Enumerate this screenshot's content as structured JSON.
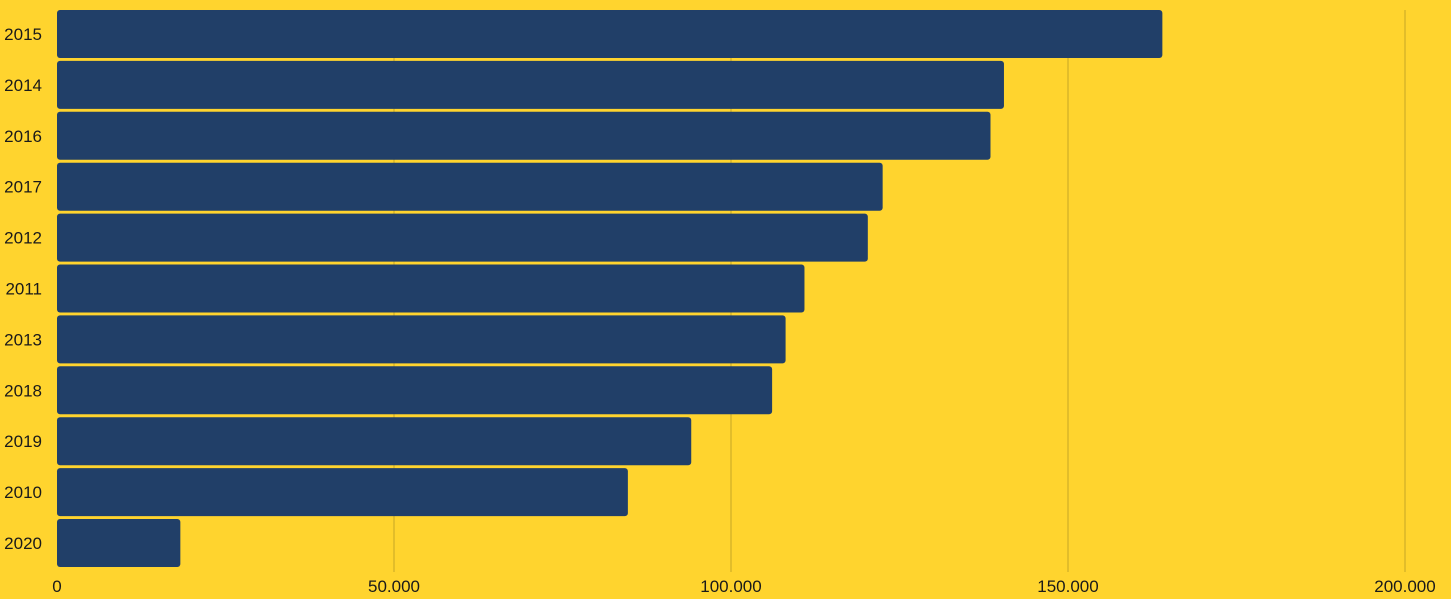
{
  "chart_data": {
    "type": "bar",
    "orientation": "horizontal",
    "categories": [
      "2015",
      "2014",
      "2016",
      "2017",
      "2012",
      "2011",
      "2013",
      "2018",
      "2019",
      "2010",
      "2020"
    ],
    "values": [
      164000,
      140500,
      138500,
      122500,
      120300,
      110900,
      108100,
      106100,
      94100,
      84700,
      18300
    ],
    "xlim": [
      0,
      200000
    ],
    "x_ticks": [
      0,
      50000,
      100000,
      150000,
      200000
    ],
    "x_tick_labels": [
      "0",
      "50.000",
      "100.000",
      "150.000",
      "200.000"
    ],
    "grid": true,
    "legend": "none",
    "title": "",
    "xlabel": "",
    "ylabel": ""
  },
  "colors": {
    "background": "#ffd42e",
    "bar": "#213f68",
    "grid": "#d9b528",
    "text": "#1a1a1a"
  }
}
